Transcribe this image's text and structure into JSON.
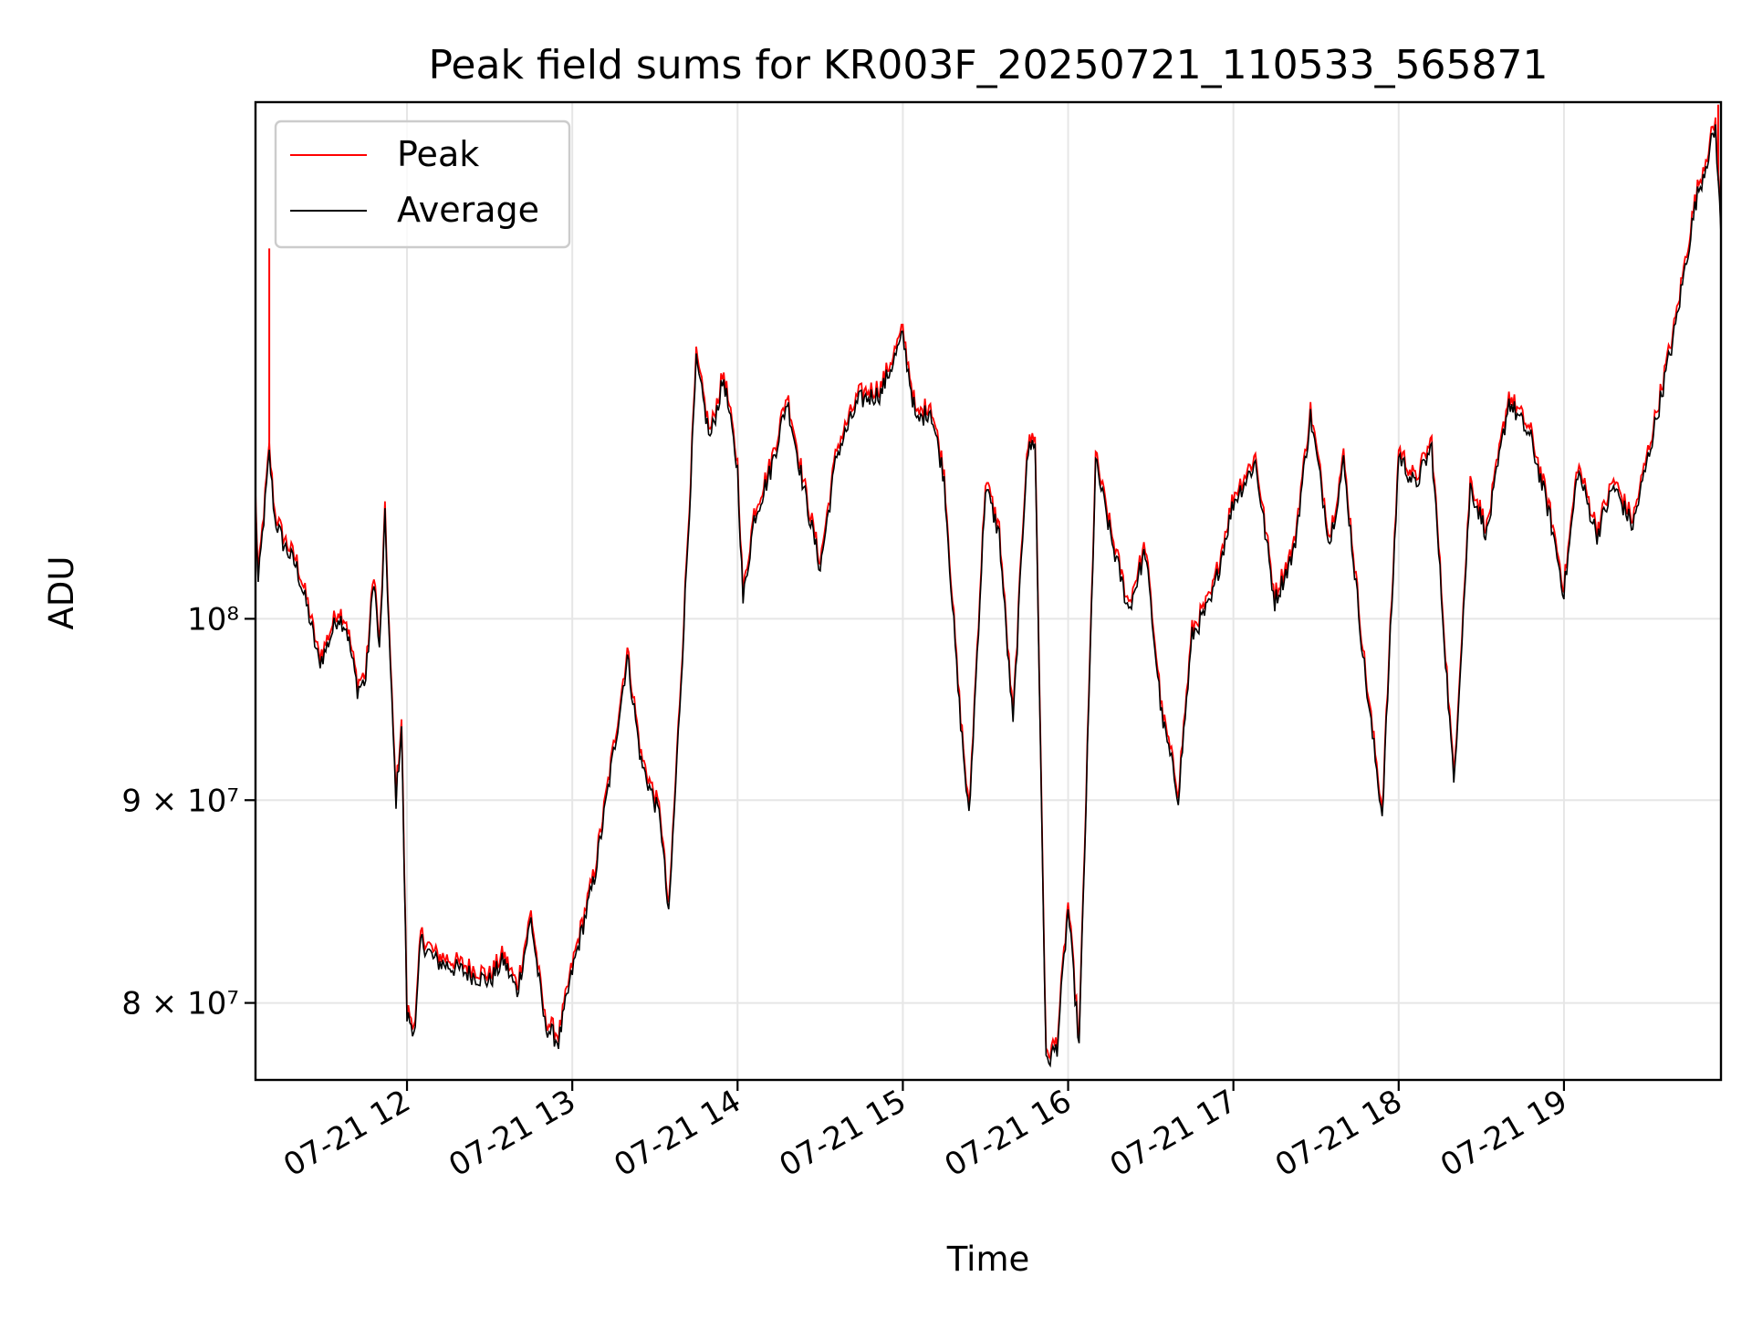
{
  "chart_data": {
    "type": "line",
    "title": "Peak field sums for KR003F_20250721_110533_565871",
    "xlabel": "Time",
    "ylabel": "ADU",
    "y_scale": "log",
    "ylim": [
      76500000,
      135000000
    ],
    "xlim": [
      "07-21 11:05",
      "07-21 19:57"
    ],
    "x_ticks": [
      "07-21 12",
      "07-21 13",
      "07-21 14",
      "07-21 15",
      "07-21 16",
      "07-21 17",
      "07-21 18",
      "07-21 19"
    ],
    "x_tick_times": [
      "07-21 12:00",
      "07-21 13:00",
      "07-21 14:00",
      "07-21 15:00",
      "07-21 16:00",
      "07-21 17:00",
      "07-21 18:00",
      "07-21 19:00"
    ],
    "y_ticks": [
      {
        "value": 80000000,
        "label": "8 × 10⁷"
      },
      {
        "value": 90000000,
        "label": "9 × 10⁷"
      },
      {
        "value": 100000000,
        "label": "10⁸"
      }
    ],
    "grid": true,
    "legend": "top-left",
    "series": [
      {
        "name": "Peak",
        "color": "#ff0000"
      },
      {
        "name": "Average",
        "color": "#000000"
      }
    ],
    "average_points": [
      [
        "07-21 11:05",
        107000000
      ],
      [
        "07-21 11:06",
        102000000
      ],
      [
        "07-21 11:08",
        106000000
      ],
      [
        "07-21 11:10",
        110000000
      ],
      [
        "07-21 11:12",
        106000000
      ],
      [
        "07-21 11:15",
        104500000
      ],
      [
        "07-21 11:20",
        103000000
      ],
      [
        "07-21 11:24",
        100500000
      ],
      [
        "07-21 11:28",
        97500000
      ],
      [
        "07-21 11:30",
        98000000
      ],
      [
        "07-21 11:35",
        100200000
      ],
      [
        "07-21 11:38",
        99500000
      ],
      [
        "07-21 11:42",
        96000000
      ],
      [
        "07-21 11:45",
        96500000
      ],
      [
        "07-21 11:48",
        102500000
      ],
      [
        "07-21 11:50",
        98000000
      ],
      [
        "07-21 11:52",
        106000000
      ],
      [
        "07-21 11:54",
        97000000
      ],
      [
        "07-21 11:56",
        90000000
      ],
      [
        "07-21 11:58",
        94000000
      ],
      [
        "07-21 12:00",
        79400000
      ],
      [
        "07-21 12:03",
        78700000
      ],
      [
        "07-21 12:05",
        83000000
      ],
      [
        "07-21 12:10",
        82000000
      ],
      [
        "07-21 12:20",
        81500000
      ],
      [
        "07-21 12:30",
        81000000
      ],
      [
        "07-21 12:35",
        82000000
      ],
      [
        "07-21 12:40",
        80500000
      ],
      [
        "07-21 12:45",
        84000000
      ],
      [
        "07-21 12:50",
        79000000
      ],
      [
        "07-21 12:55",
        78200000
      ],
      [
        "07-21 13:00",
        81500000
      ],
      [
        "07-21 13:08",
        86000000
      ],
      [
        "07-21 13:15",
        92500000
      ],
      [
        "07-21 13:20",
        97800000
      ],
      [
        "07-21 13:25",
        92000000
      ],
      [
        "07-21 13:32",
        89000000
      ],
      [
        "07-21 13:35",
        84000000
      ],
      [
        "07-21 13:40",
        98000000
      ],
      [
        "07-21 13:45",
        116000000
      ],
      [
        "07-21 13:50",
        111000000
      ],
      [
        "07-21 13:55",
        115000000
      ],
      [
        "07-21 14:00",
        109000000
      ],
      [
        "07-21 14:02",
        101000000
      ],
      [
        "07-21 14:06",
        106000000
      ],
      [
        "07-21 14:12",
        109000000
      ],
      [
        "07-21 14:18",
        113500000
      ],
      [
        "07-21 14:25",
        107000000
      ],
      [
        "07-21 14:30",
        103000000
      ],
      [
        "07-21 14:36",
        110000000
      ],
      [
        "07-21 14:44",
        113500000
      ],
      [
        "07-21 14:52",
        114000000
      ],
      [
        "07-21 15:00",
        117800000
      ],
      [
        "07-21 15:05",
        112000000
      ],
      [
        "07-21 15:10",
        113000000
      ],
      [
        "07-21 15:15",
        108500000
      ],
      [
        "07-21 15:20",
        96000000
      ],
      [
        "07-21 15:24",
        89000000
      ],
      [
        "07-21 15:30",
        108000000
      ],
      [
        "07-21 15:35",
        105000000
      ],
      [
        "07-21 15:40",
        94000000
      ],
      [
        "07-21 15:45",
        110000000
      ],
      [
        "07-21 15:48",
        111000000
      ],
      [
        "07-21 15:52",
        77200000
      ],
      [
        "07-21 15:56",
        78000000
      ],
      [
        "07-21 16:00",
        84500000
      ],
      [
        "07-21 16:04",
        78000000
      ],
      [
        "07-21 16:10",
        109500000
      ],
      [
        "07-21 16:16",
        104500000
      ],
      [
        "07-21 16:22",
        100500000
      ],
      [
        "07-21 16:28",
        104000000
      ],
      [
        "07-21 16:34",
        94500000
      ],
      [
        "07-21 16:40",
        90200000
      ],
      [
        "07-21 16:45",
        99000000
      ],
      [
        "07-21 16:52",
        101000000
      ],
      [
        "07-21 17:00",
        107000000
      ],
      [
        "07-21 17:08",
        109500000
      ],
      [
        "07-21 17:15",
        101000000
      ],
      [
        "07-21 17:22",
        104000000
      ],
      [
        "07-21 17:28",
        112500000
      ],
      [
        "07-21 17:35",
        104500000
      ],
      [
        "07-21 17:40",
        109500000
      ],
      [
        "07-21 17:48",
        96500000
      ],
      [
        "07-21 17:54",
        89200000
      ],
      [
        "07-21 18:00",
        110000000
      ],
      [
        "07-21 18:06",
        108000000
      ],
      [
        "07-21 18:12",
        110500000
      ],
      [
        "07-21 18:20",
        90800000
      ],
      [
        "07-21 18:26",
        108000000
      ],
      [
        "07-21 18:32",
        105000000
      ],
      [
        "07-21 18:40",
        113500000
      ],
      [
        "07-21 18:48",
        111000000
      ],
      [
        "07-21 18:55",
        106000000
      ],
      [
        "07-21 19:00",
        101500000
      ],
      [
        "07-21 19:05",
        109000000
      ],
      [
        "07-21 19:12",
        105000000
      ],
      [
        "07-21 19:18",
        108000000
      ],
      [
        "07-21 19:25",
        105500000
      ],
      [
        "07-21 19:32",
        111000000
      ],
      [
        "07-21 19:40",
        118000000
      ],
      [
        "07-21 19:48",
        127500000
      ],
      [
        "07-21 19:55",
        133000000
      ],
      [
        "07-21 19:57",
        125000000
      ]
    ],
    "peak_offsets": [
      {
        "time": "07-21 11:10",
        "value": 124000000
      },
      {
        "time": "07-21 15:00",
        "value": 118500000
      },
      {
        "time": "07-21 19:56",
        "value": 134800000
      }
    ]
  }
}
